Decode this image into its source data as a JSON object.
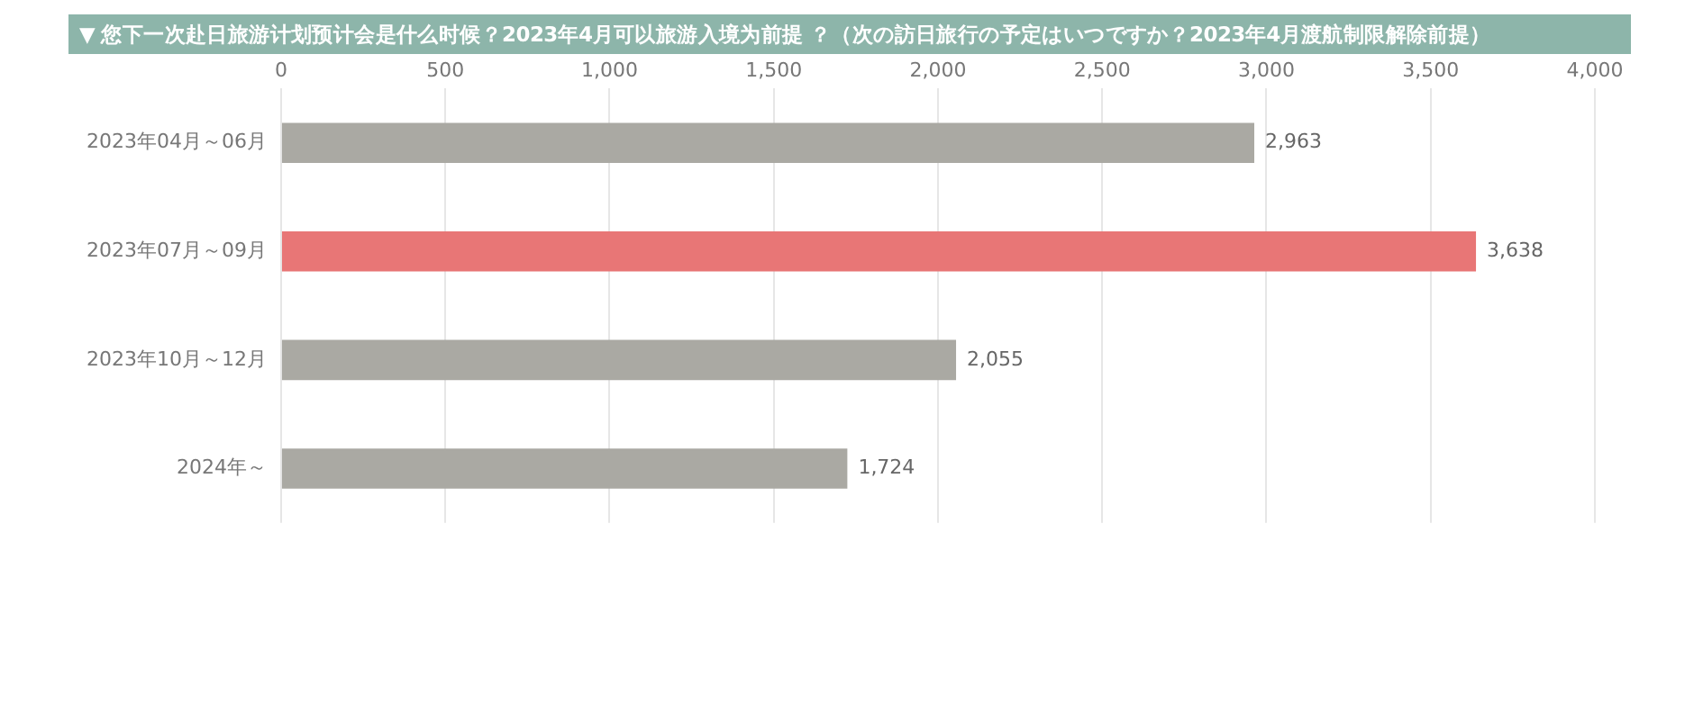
{
  "chart_data": {
    "type": "bar",
    "orientation": "horizontal",
    "title": "▼ 您下一次赴日旅游计划预计会是什么时候？2023年4月可以旅游入境为前提 ？（次の訪日旅行の予定はいつですか？2023年4月渡航制限解除前提）",
    "categories": [
      "2023年04月～06月",
      "2023年07月～09月",
      "2023年10月～12月",
      "2024年～"
    ],
    "values": [
      2963,
      3638,
      2055,
      1724
    ],
    "colors": [
      "#aaa9a3",
      "#e87676",
      "#aaa9a3",
      "#aaa9a3"
    ],
    "xlim": [
      0,
      4000
    ],
    "xticks": [
      {
        "value": 0,
        "label": "0"
      },
      {
        "value": 500,
        "label": "500"
      },
      {
        "value": 1000,
        "label": "1,000"
      },
      {
        "value": 1500,
        "label": "1,500"
      },
      {
        "value": 2000,
        "label": "2,000"
      },
      {
        "value": 2500,
        "label": "2,500"
      },
      {
        "value": 3000,
        "label": "3,000"
      },
      {
        "value": 3500,
        "label": "3,500"
      },
      {
        "value": 4000,
        "label": "4,000"
      }
    ],
    "value_labels": [
      "2,963",
      "3,638",
      "2,055",
      "1,724"
    ],
    "grid": "x",
    "legend": false
  }
}
